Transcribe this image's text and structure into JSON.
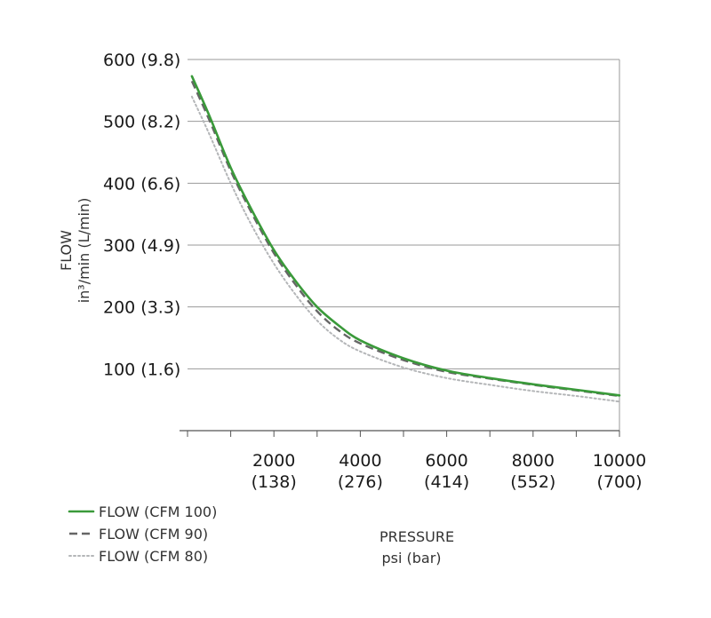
{
  "chart_data": {
    "type": "line",
    "xlabel": "PRESSURE",
    "xlabel_units": "psi (bar)",
    "ylabel": "FLOW",
    "ylabel_units": "in³/min  (L/min)",
    "xlim": [
      0,
      10000
    ],
    "ylim": [
      0,
      600
    ],
    "x_ticks": [
      {
        "value": 2000,
        "label": "2000",
        "sub": "(138)"
      },
      {
        "value": 4000,
        "label": "4000",
        "sub": "(276)"
      },
      {
        "value": 6000,
        "label": "6000",
        "sub": "(414)"
      },
      {
        "value": 8000,
        "label": "8000",
        "sub": "(552)"
      },
      {
        "value": 10000,
        "label": "10000",
        "sub": "(700)"
      }
    ],
    "x_minor_ticks": [
      0,
      1000,
      3000,
      5000,
      7000,
      9000
    ],
    "y_ticks": [
      {
        "value": 100,
        "label": "100",
        "sub": "(1.6)"
      },
      {
        "value": 200,
        "label": "200",
        "sub": "(3.3)"
      },
      {
        "value": 300,
        "label": "300",
        "sub": "(4.9)"
      },
      {
        "value": 400,
        "label": "400",
        "sub": "(6.6)"
      },
      {
        "value": 500,
        "label": "500",
        "sub": "(8.2)"
      },
      {
        "value": 600,
        "label": "600",
        "sub": "(9.8)"
      }
    ],
    "grid": "horizontal",
    "legend_position": "bottom-left",
    "series": [
      {
        "name": "FLOW (CFM 100)",
        "color": "#3a9a3a",
        "style": "solid",
        "x": [
          100,
          500,
          1000,
          1500,
          2000,
          2500,
          3000,
          3500,
          4000,
          5000,
          6000,
          7000,
          8000,
          9000,
          10000
        ],
        "y": [
          573,
          510,
          425,
          355,
          292,
          242,
          200,
          170,
          146,
          117,
          97,
          85,
          75,
          66,
          57
        ]
      },
      {
        "name": "FLOW (CFM 90)",
        "color": "#666666",
        "style": "dashed",
        "x": [
          100,
          500,
          1000,
          1500,
          2000,
          2500,
          3000,
          3500,
          4000,
          5000,
          6000,
          7000,
          8000,
          9000,
          10000
        ],
        "y": [
          565,
          503,
          420,
          350,
          287,
          236,
          193,
          162,
          141,
          114,
          95,
          84,
          74,
          65,
          56
        ]
      },
      {
        "name": "FLOW (CFM 80)",
        "color": "#b4b6b8",
        "style": "dotted",
        "x": [
          100,
          500,
          1000,
          1500,
          2000,
          2500,
          3000,
          3500,
          4000,
          5000,
          6000,
          7000,
          8000,
          9000,
          10000
        ],
        "y": [
          540,
          480,
          400,
          330,
          270,
          220,
          178,
          148,
          128,
          102,
          85,
          74,
          64,
          56,
          47
        ]
      }
    ]
  }
}
